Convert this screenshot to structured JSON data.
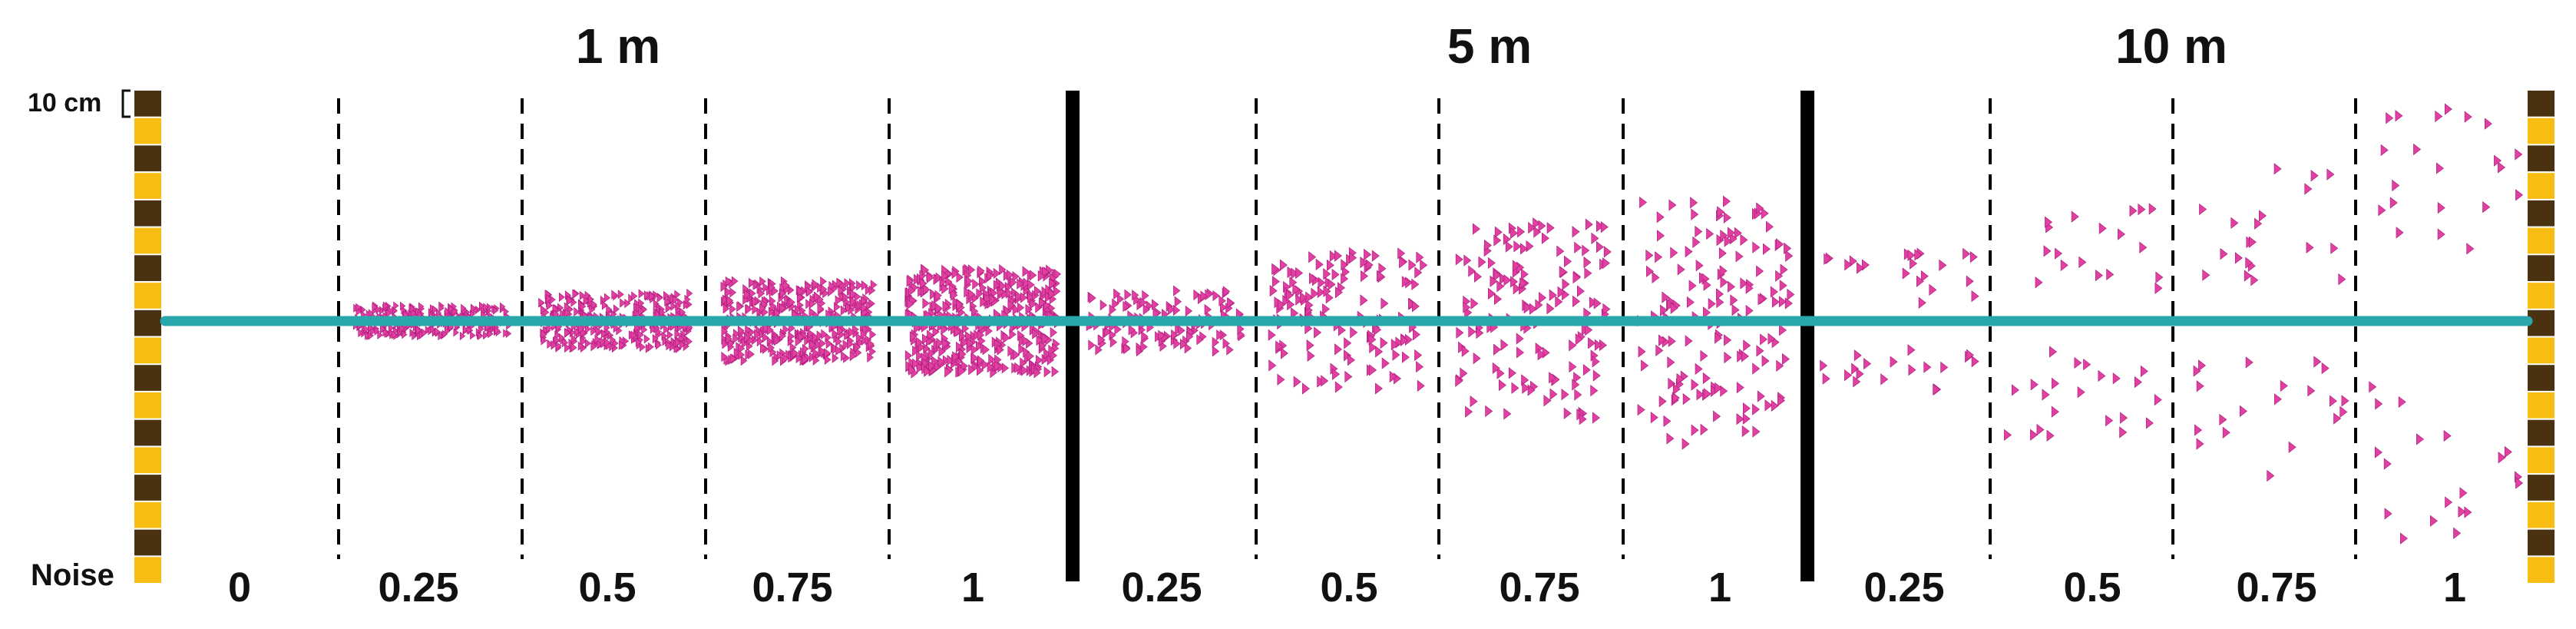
{
  "distance_headers": [
    "1 m",
    "5 m",
    "10 m"
  ],
  "scale_bar_label": "10 cm",
  "axis_label": "Noise",
  "noise_levels": [
    "0",
    "0.25",
    "0.5",
    "0.75",
    "1",
    "0.25",
    "0.5",
    "0.75",
    "1",
    "0.25",
    "0.5",
    "0.75",
    "1"
  ],
  "colors": {
    "baseline": "#2aa7ad",
    "markers": "#e0409f",
    "marker_stroke": "#a8157a",
    "ruler_dark": "#4a3211",
    "ruler_light": "#f7bd12",
    "separator": "#000000"
  },
  "panels": [
    {
      "group": "1 m",
      "noise": 0
    },
    {
      "group": "1 m",
      "noise": 0.25
    },
    {
      "group": "1 m",
      "noise": 0.5
    },
    {
      "group": "1 m",
      "noise": 0.75
    },
    {
      "group": "1 m",
      "noise": 1
    },
    {
      "group": "5 m",
      "noise": 0.25
    },
    {
      "group": "5 m",
      "noise": 0.5
    },
    {
      "group": "5 m",
      "noise": 0.75
    },
    {
      "group": "5 m",
      "noise": 1
    },
    {
      "group": "10 m",
      "noise": 0.25
    },
    {
      "group": "10 m",
      "noise": 0.5
    },
    {
      "group": "10 m",
      "noise": 0.75
    },
    {
      "group": "10 m",
      "noise": 1
    }
  ]
}
